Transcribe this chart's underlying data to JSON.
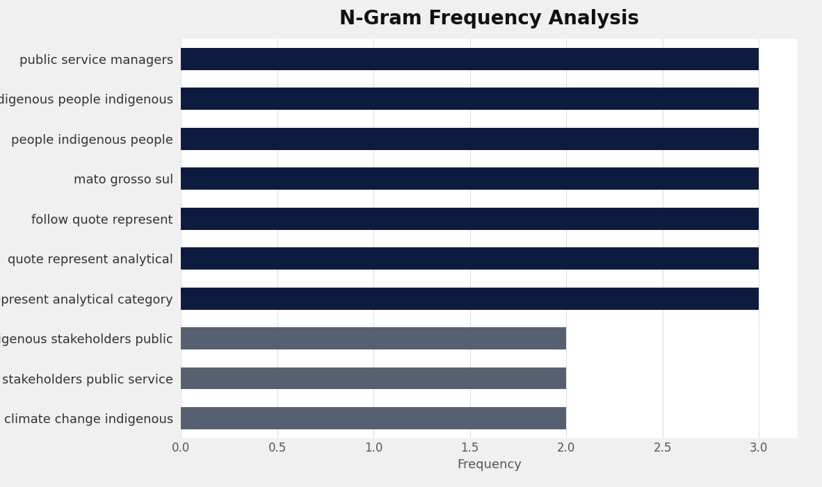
{
  "title": "N-Gram Frequency Analysis",
  "xlabel": "Frequency",
  "categories": [
    "climate change indigenous",
    "stakeholders public service",
    "indigenous stakeholders public",
    "represent analytical category",
    "quote represent analytical",
    "follow quote represent",
    "mato grosso sul",
    "people indigenous people",
    "indigenous people indigenous",
    "public service managers"
  ],
  "values": [
    2,
    2,
    2,
    3,
    3,
    3,
    3,
    3,
    3,
    3
  ],
  "bar_colors": [
    "#576070",
    "#576070",
    "#576070",
    "#0d1b3e",
    "#0d1b3e",
    "#0d1b3e",
    "#0d1b3e",
    "#0d1b3e",
    "#0d1b3e",
    "#0d1b3e"
  ],
  "xlim": [
    0,
    3.2
  ],
  "xticks": [
    0.0,
    0.5,
    1.0,
    1.5,
    2.0,
    2.5,
    3.0
  ],
  "figure_background_color": "#f0f0f0",
  "axes_background_color": "#ffffff",
  "title_fontsize": 20,
  "label_fontsize": 13,
  "tick_fontsize": 12,
  "bar_height": 0.55
}
